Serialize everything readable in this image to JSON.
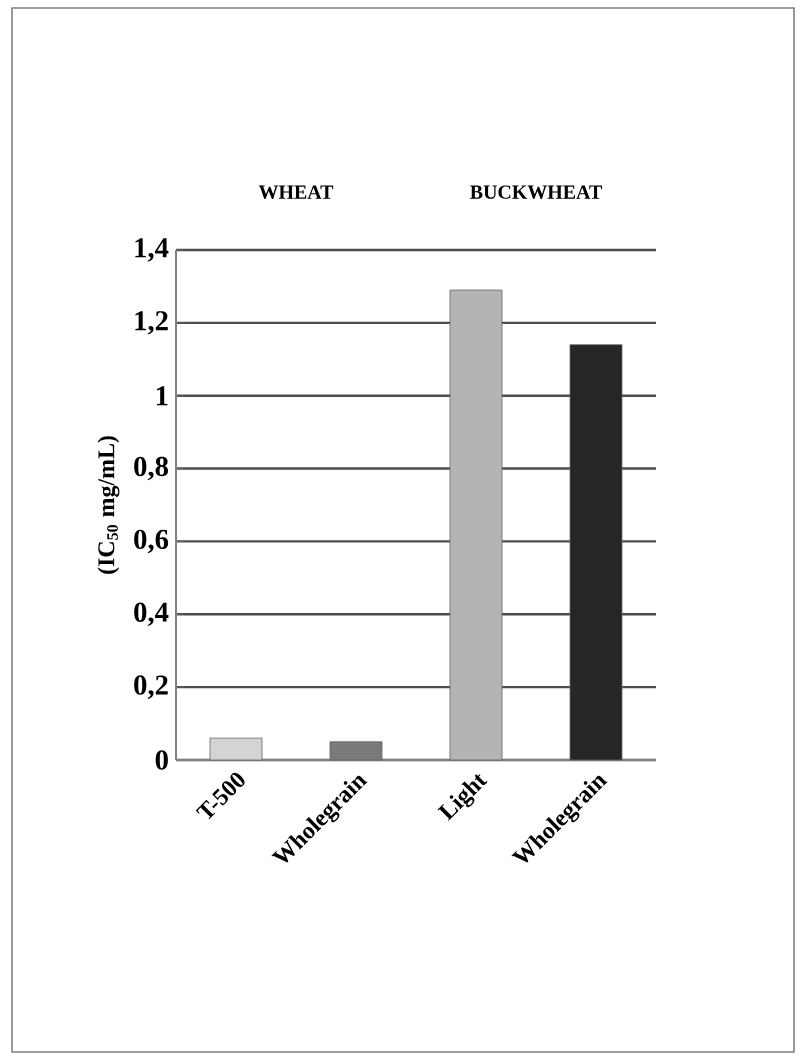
{
  "chart_data": {
    "type": "bar",
    "ylabel": "(IC$_{50}$ mg/mL)",
    "annotations": [
      "WHEAT",
      "BUCKWHEAT"
    ],
    "categories": [
      "T-500",
      "Wholegrain",
      "Light",
      "Wholegrain"
    ],
    "values": [
      0.06,
      0.05,
      1.29,
      1.14
    ],
    "colors": [
      "#d4d4d4",
      "#7a7a7a",
      "#b4b4b4",
      "#262626"
    ],
    "ylim": [
      0,
      1.4
    ],
    "yticks": [
      0,
      {
        "value": 0.2,
        "label": "0,2"
      },
      {
        "value": 0.4,
        "label": "0,4"
      },
      {
        "value": 0.6,
        "label": "0,6"
      },
      {
        "value": 0.8,
        "label": "0,8"
      },
      1,
      {
        "value": 1.2,
        "label": "1,2"
      },
      {
        "value": 1.4,
        "label": "1,4"
      }
    ],
    "grid": "y"
  }
}
